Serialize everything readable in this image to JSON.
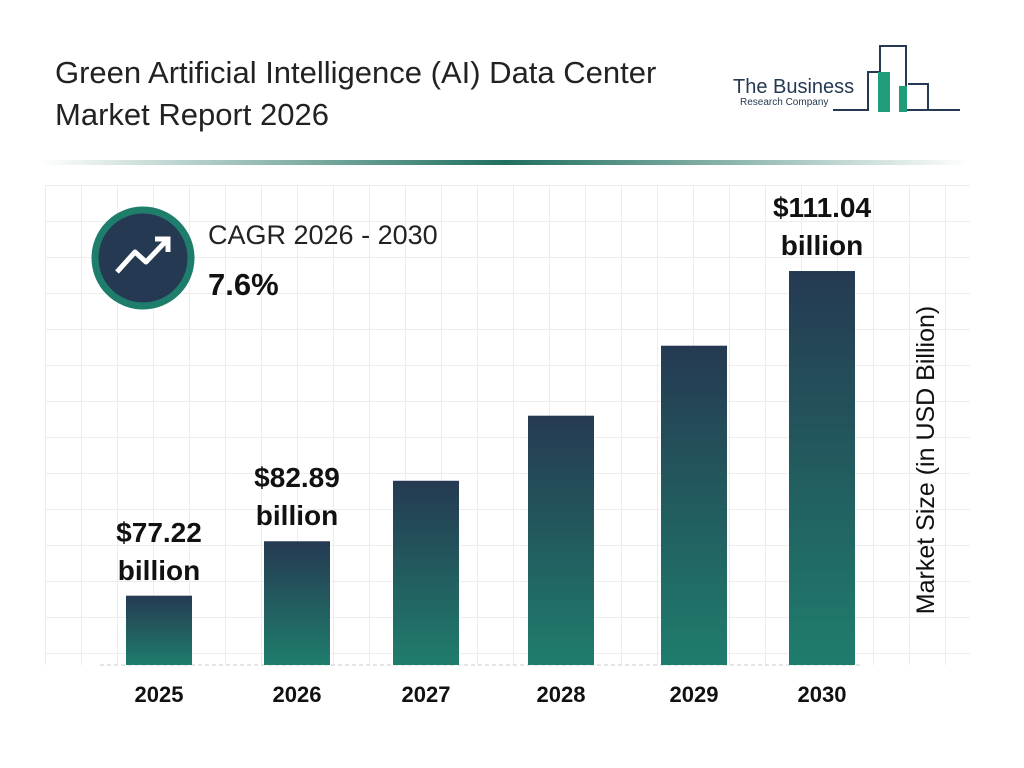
{
  "chart_data": {
    "type": "bar",
    "title": "Green Artificial Intelligence (AI) Data Center Market Report 2026",
    "brand": [
      "The Business",
      "Research Company"
    ],
    "cagr_label": "CAGR 2026 - 2030",
    "cagr_value": "7.6%",
    "y_axis_label": "Market Size (in USD Billion)",
    "categories": [
      "2025",
      "2026",
      "2027",
      "2028",
      "2029",
      "2030"
    ],
    "values": [
      77.22,
      82.89,
      89.19,
      95.97,
      103.26,
      111.04
    ],
    "value_labels": [
      "$77.22 billion",
      "$82.89 billion",
      null,
      null,
      null,
      "$111.04 billion"
    ],
    "ylim": [
      70,
      120
    ],
    "colors": [
      "#253a52",
      "#1f7d6c"
    ]
  }
}
